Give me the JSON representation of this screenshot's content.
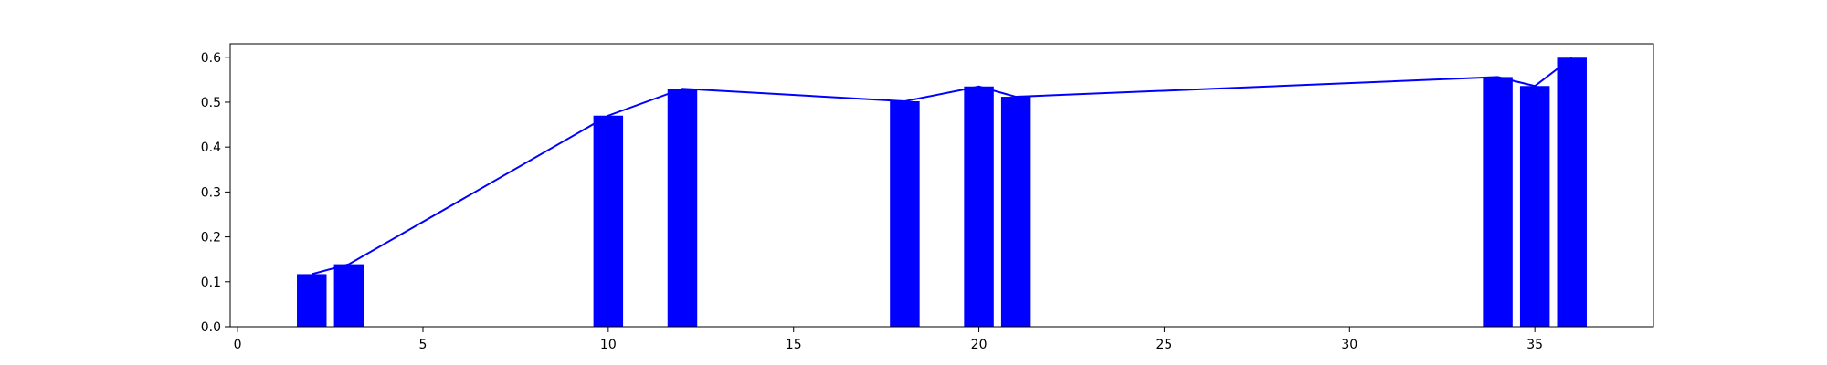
{
  "chart_data": {
    "type": "bar",
    "title": "",
    "xlabel": "",
    "ylabel": "",
    "x": [
      2,
      3,
      10,
      12,
      18,
      20,
      21,
      34,
      35,
      36
    ],
    "values": [
      0.117,
      0.139,
      0.47,
      0.53,
      0.502,
      0.535,
      0.512,
      0.556,
      0.536,
      0.599
    ],
    "overlay_line": {
      "type": "line",
      "x": [
        2,
        3,
        10,
        12,
        18,
        20,
        21,
        34,
        35,
        36
      ],
      "values": [
        0.117,
        0.139,
        0.47,
        0.53,
        0.502,
        0.535,
        0.512,
        0.556,
        0.536,
        0.599
      ]
    },
    "bar_width": 0.8,
    "bar_color": "#0000ff",
    "line_color": "#0000ff",
    "xlim": [
      -0.2,
      38.2
    ],
    "ylim": [
      0,
      0.63
    ],
    "xticks": [
      0,
      5,
      10,
      15,
      20,
      25,
      30,
      35
    ],
    "xtick_labels": [
      "0",
      "5",
      "10",
      "15",
      "20",
      "25",
      "30",
      "35"
    ],
    "yticks": [
      0.0,
      0.1,
      0.2,
      0.3,
      0.4,
      0.5,
      0.6
    ],
    "ytick_labels": [
      "0.0",
      "0.1",
      "0.2",
      "0.3",
      "0.4",
      "0.5",
      "0.6"
    ],
    "grid": false,
    "legend": "none"
  }
}
